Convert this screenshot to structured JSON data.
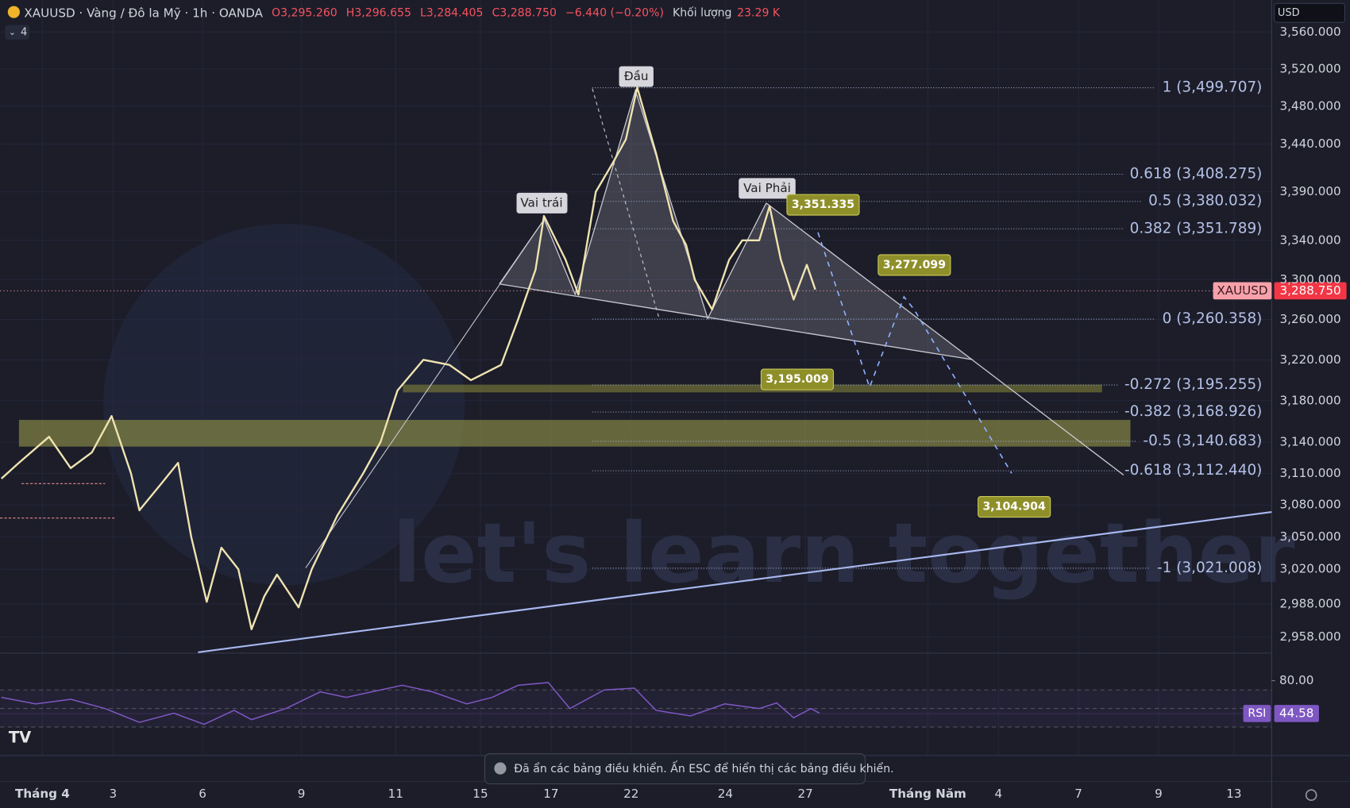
{
  "header": {
    "symbol": "XAUUSD · Vàng / Đô la Mỹ · 1h · OANDA",
    "open": "O3,295.260",
    "high": "H3,296.655",
    "low": "L3,284.405",
    "close": "C3,288.750",
    "change": "−6.440 (−0.20%)",
    "volume_label": "Khối lượng",
    "volume": "23.29 K",
    "indicators_count": "4",
    "currency": "USD"
  },
  "chart_data": {
    "type": "line",
    "series": [
      {
        "name": "XAUUSD",
        "color": "#efe3b0",
        "x": [
          -0.37,
          0,
          0.64,
          1.1,
          1.55,
          1.97,
          2.38,
          2.56,
          3.02,
          3.38,
          3.66,
          3.99,
          4.3,
          4.66,
          4.94,
          5.21,
          5.48,
          5.94,
          6.22,
          6.76,
          7.31,
          7.68,
          8.04,
          8.59,
          9.14,
          9.6,
          10.24,
          10.6,
          10.97,
          11.15,
          11.61,
          11.88,
          12.25,
          12.61,
          12.89,
          13.13,
          13.53,
          13.89,
          14.17,
          14.35,
          14.72,
          15.08,
          15.36,
          15.72,
          15.94,
          16.18,
          16.45,
          16.73,
          16.91
        ],
        "values": [
          3105,
          3120,
          3145,
          3115,
          3130,
          3165,
          3110,
          3075,
          3100,
          3120,
          3050,
          2990,
          3040,
          3020,
          2965,
          2995,
          3015,
          2985,
          3020,
          3070,
          3110,
          3140,
          3190,
          3220,
          3215,
          3200,
          3215,
          3260,
          3310,
          3365,
          3320,
          3285,
          3390,
          3420,
          3445,
          3500,
          3430,
          3360,
          3335,
          3300,
          3270,
          3320,
          3340,
          3340,
          3375,
          3320,
          3280,
          3315,
          3290
        ]
      }
    ],
    "xlim": [
      -0.4,
      26.6
    ],
    "xticks": [
      {
        "value": 0.5,
        "label": "Tháng 4"
      },
      {
        "value": 2.0,
        "label": "3"
      },
      {
        "value": 3.9,
        "label": "6"
      },
      {
        "value": 6.0,
        "label": "9"
      },
      {
        "value": 8.0,
        "label": "11"
      },
      {
        "value": 9.8,
        "label": "15"
      },
      {
        "value": 11.3,
        "label": "17"
      },
      {
        "value": 13.0,
        "label": "22"
      },
      {
        "value": 15.0,
        "label": "24"
      },
      {
        "value": 16.7,
        "label": "27"
      },
      {
        "value": 19.3,
        "label": "Tháng Năm"
      },
      {
        "value": 20.8,
        "label": "4"
      },
      {
        "value": 22.5,
        "label": "7"
      },
      {
        "value": 24.2,
        "label": "9"
      },
      {
        "value": 25.8,
        "label": "13"
      }
    ],
    "ylim": [
      2945,
      3595
    ],
    "log_scale": true,
    "yticks": [
      {
        "value": 3560,
        "label": "3,560.000"
      },
      {
        "value": 3520,
        "label": "3,520.000"
      },
      {
        "value": 3480,
        "label": "3,480.000"
      },
      {
        "value": 3440,
        "label": "3,440.000"
      },
      {
        "value": 3390,
        "label": "3,390.000"
      },
      {
        "value": 3340,
        "label": "3,340.000"
      },
      {
        "value": 3300,
        "label": "3,300.000"
      },
      {
        "value": 3260,
        "label": "3,260.000"
      },
      {
        "value": 3220,
        "label": "3,220.000"
      },
      {
        "value": 3180,
        "label": "3,180.000"
      },
      {
        "value": 3140,
        "label": "3,140.000"
      },
      {
        "value": 3110,
        "label": "3,110.000"
      },
      {
        "value": 3080,
        "label": "3,080.000"
      },
      {
        "value": 3050,
        "label": "3,050.000"
      },
      {
        "value": 3020,
        "label": "3,020.000"
      },
      {
        "value": 2988,
        "label": "2,988.000"
      },
      {
        "value": 2958,
        "label": "2,958.000"
      }
    ],
    "last_price": {
      "label": "XAUUSD",
      "value": 3288.75,
      "value_label": "3,288.750"
    },
    "fib_levels": [
      {
        "label": "1 (3,499.707)",
        "value": 3499.707
      },
      {
        "label": "0.618 (3,408.275)",
        "value": 3408.275
      },
      {
        "label": "0.5 (3,380.032)",
        "value": 3380.032
      },
      {
        "label": "0.382 (3,351.789)",
        "value": 3351.789
      },
      {
        "label": "0 (3,260.358)",
        "value": 3260.358
      },
      {
        "label": "-0.272 (3,195.255)",
        "value": 3195.255
      },
      {
        "label": "-0.382 (3,168.926)",
        "value": 3168.926
      },
      {
        "label": "-0.5 (3,140.683)",
        "value": 3140.683
      },
      {
        "label": "-0.618 (3,112.440)",
        "value": 3112.44
      },
      {
        "label": "-1 (3,021.008)",
        "value": 3021.008
      }
    ],
    "callouts": [
      {
        "value": 3351.335,
        "label": "3,351.335"
      },
      {
        "value": 3277.099,
        "label": "3,277.099"
      },
      {
        "value": 3195.009,
        "label": "3,195.009"
      },
      {
        "value": 3104.904,
        "label": "3,104.904"
      }
    ],
    "pattern_labels": [
      "Đầu",
      "Vai trái",
      "Vai Phải"
    ],
    "rsi": {
      "name": "RSI",
      "value": 44.58,
      "value_label": "44.58",
      "color": "#7e57c2",
      "x": [
        -0.37,
        0.36,
        1.1,
        1.83,
        2.56,
        3.29,
        3.93,
        4.57,
        4.94,
        5.67,
        6.4,
        6.95,
        7.68,
        8.14,
        8.78,
        9.51,
        10.05,
        10.6,
        11.24,
        11.7,
        12.43,
        13.07,
        13.53,
        14.26,
        14.99,
        15.72,
        16.09,
        16.45,
        16.82,
        17.0
      ],
      "values": [
        62,
        55,
        60,
        50,
        35,
        45,
        33,
        48,
        38,
        50,
        68,
        62,
        70,
        75,
        68,
        55,
        62,
        75,
        78,
        50,
        70,
        72,
        48,
        42,
        55,
        50,
        56,
        40,
        50,
        45
      ],
      "ylim": [
        -0.7,
        108.8
      ],
      "yticks": [
        {
          "value": 80,
          "label": "80.00"
        }
      ],
      "bands": [
        70,
        50,
        30
      ]
    }
  },
  "toast": "Đã ẩn các bảng điều khiển. Ấn ESC để hiển thị các bảng điều khiển.",
  "watermark": "let's learn together"
}
